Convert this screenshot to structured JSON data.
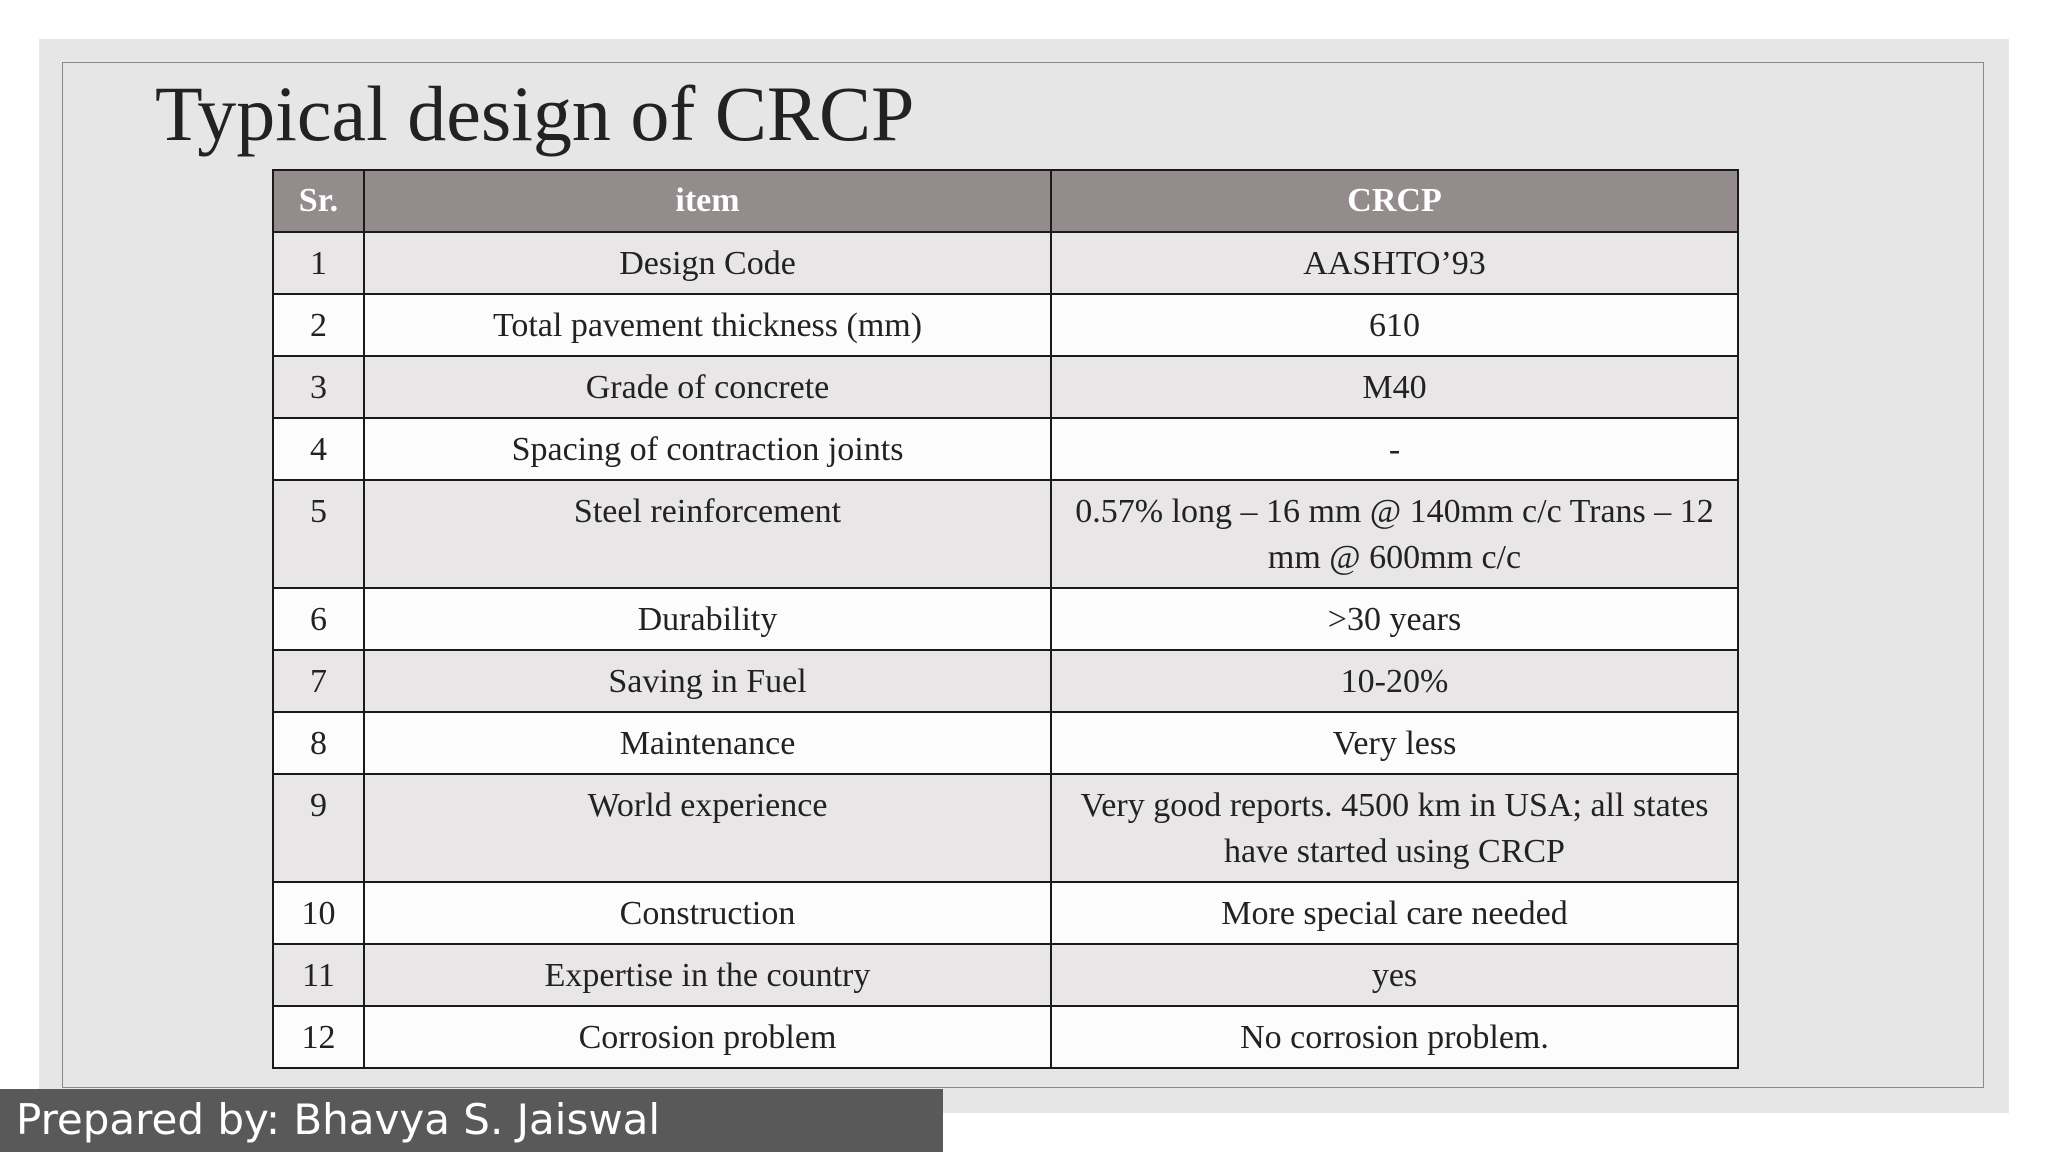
{
  "slide": {
    "title": "Typical design of CRCP"
  },
  "table": {
    "headers": [
      "Sr.",
      "item",
      "CRCP"
    ],
    "rows": [
      [
        "1",
        "Design Code",
        "AASHTO’93"
      ],
      [
        "2",
        "Total pavement thickness (mm)",
        "610"
      ],
      [
        "3",
        "Grade of concrete",
        "M40"
      ],
      [
        "4",
        "Spacing of contraction joints",
        "-"
      ],
      [
        "5",
        "Steel reinforcement",
        "0.57% long – 16 mm @ 140mm c/c Trans – 12 mm @ 600mm c/c"
      ],
      [
        "6",
        "Durability",
        ">30 years"
      ],
      [
        "7",
        "Saving in Fuel",
        "10-20%"
      ],
      [
        "8",
        "Maintenance",
        "Very less"
      ],
      [
        "9",
        "World experience",
        "Very good reports. 4500 km in USA; all states have started using CRCP"
      ],
      [
        "10",
        "Construction",
        "More special care needed"
      ],
      [
        "11",
        "Expertise in the country",
        "yes"
      ],
      [
        "12",
        "Corrosion problem",
        "No corrosion problem."
      ]
    ]
  },
  "footer": {
    "text": "Prepared by: Bhavya S. Jaiswal",
    "background_color": "#595959"
  },
  "colors": {
    "header_fill": "#948b8c",
    "slide_background": "#e6e6e6"
  }
}
